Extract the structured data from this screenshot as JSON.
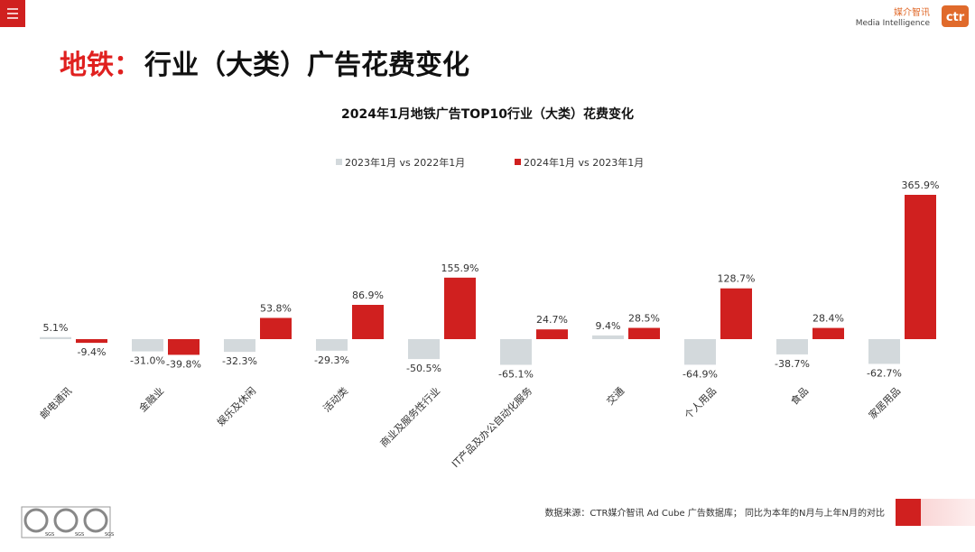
{
  "header": {
    "logo_cn": "媒介智讯",
    "logo_en": "Media Intelligence",
    "logo_mark": "ctr"
  },
  "title_prefix": "地铁：",
  "title_main": "行业（大类）广告花费变化",
  "chart_data": {
    "type": "bar",
    "title": "2024年1月地铁广告TOP10行业（大类）花费变化",
    "categories": [
      "邮电通讯",
      "金融业",
      "娱乐及休闲",
      "活动类",
      "商业及服务性行业",
      "IT产品及办公自动化服务",
      "交通",
      "个人用品",
      "食品",
      "家居用品"
    ],
    "series": [
      {
        "name": "2023年1月 vs 2022年1月",
        "color": "#d3d9dc",
        "values": [
          5.1,
          -31.0,
          -32.3,
          -29.3,
          -50.5,
          -65.1,
          9.4,
          -64.9,
          -38.7,
          -62.7
        ],
        "value_labels": [
          "5.1%",
          "-31.0%",
          "-32.3%",
          "-29.3%",
          "-50.5%",
          "-65.1%",
          "9.4%",
          "-64.9%",
          "-38.7%",
          "-62.7%"
        ]
      },
      {
        "name": "2024年1月 vs 2023年1月",
        "color": "#d0201f",
        "values": [
          -9.4,
          -39.8,
          53.8,
          86.9,
          155.9,
          24.7,
          28.5,
          128.7,
          28.4,
          365.9
        ],
        "value_labels": [
          "-9.4%",
          "-39.8%",
          "53.8%",
          "86.9%",
          "155.9%",
          "24.7%",
          "28.5%",
          "128.7%",
          "28.4%",
          "365.9%"
        ]
      }
    ]
  },
  "footer": {
    "source": "数据来源：CTR媒介智讯 Ad Cube 广告数据库； 同比为本年的N月与上年N月的对比",
    "badge": "SGS"
  }
}
